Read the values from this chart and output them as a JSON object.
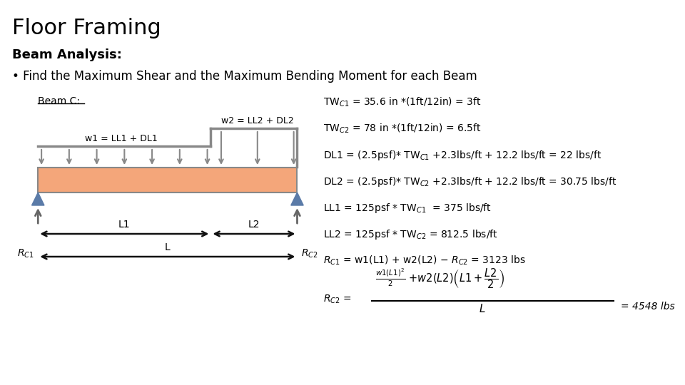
{
  "title": "Floor Framing",
  "subtitle": "Beam Analysis:",
  "bullet": "Find the Maximum Shear and the Maximum Bending Moment for each Beam",
  "beam_label": "Beam C:",
  "beam_color": "#F4A67A",
  "beam_outline": "#888888",
  "arrow_color": "#5B7BA8",
  "load_arrow_color": "#888888",
  "dim_arrow_color": "#111111",
  "right_side_lines": [
    "TW$_{C1}$ = 35.6 in *(1ft/12in) = 3ft",
    "TW$_{C2}$ = 78 in *(1ft/12in) = 6.5ft",
    "DL1 = (2.5psf)* TW$_{C1}$ +2.3lbs/ft + 12.2 lbs/ft = 22 lbs/ft",
    "DL2 = (2.5psf)* TW$_{C2}$ +2.3lbs/ft + 12.2 lbs/ft = 30.75 lbs/ft",
    "LL1 = 125psf * TW$_{C1}$  = 375 lbs/ft",
    "LL2 = 125psf * TW$_{C2}$ = 812.5 lbs/ft",
    "$R_{C1}$ = w1(L1) + w2(L2) − $R_{C2}$ = 3123 lbs"
  ],
  "background_color": "#ffffff"
}
